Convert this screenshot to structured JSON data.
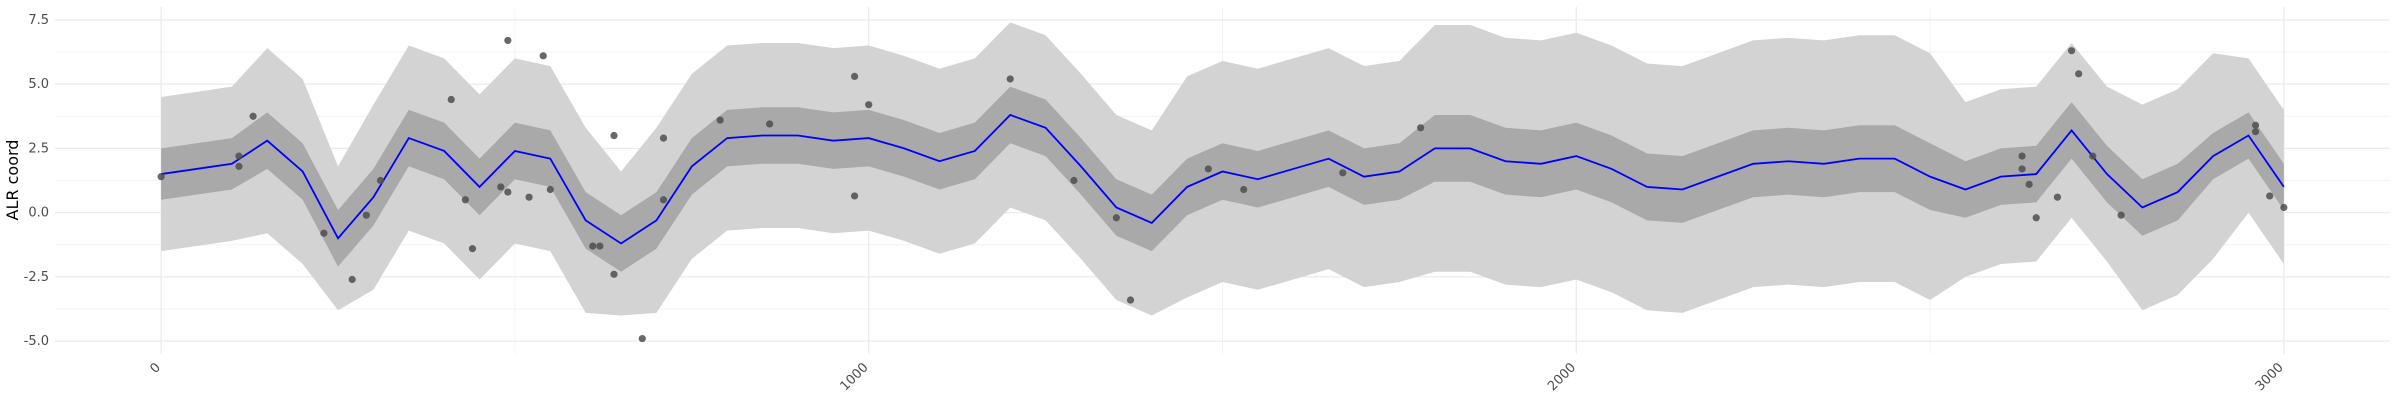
{
  "chart_data": {
    "type": "line",
    "y_label": "ALR coord",
    "xlim": [
      -150,
      3150
    ],
    "ylim": [
      -5.5,
      8
    ],
    "xticks": [
      0,
      1000,
      2000,
      3000
    ],
    "yticks": [
      {
        "value": -5,
        "label": "-5.0"
      },
      {
        "value": -2.5,
        "label": "-2.5"
      },
      {
        "value": 0,
        "label": "0.0"
      },
      {
        "value": 2.5,
        "label": "2.5"
      },
      {
        "value": 5,
        "label": "5.0"
      },
      {
        "value": 7.5,
        "label": "7.5"
      }
    ],
    "grid": true,
    "x": [
      0,
      50,
      100,
      150,
      200,
      250,
      300,
      350,
      400,
      450,
      500,
      550,
      600,
      650,
      700,
      750,
      800,
      850,
      900,
      950,
      1000,
      1050,
      1100,
      1150,
      1200,
      1250,
      1300,
      1350,
      1400,
      1450,
      1500,
      1550,
      1600,
      1650,
      1700,
      1750,
      1800,
      1850,
      1900,
      1950,
      2000,
      2050,
      2100,
      2150,
      2200,
      2250,
      2300,
      2350,
      2400,
      2450,
      2500,
      2550,
      2600,
      2650,
      2700,
      2750,
      2800,
      2850,
      2900,
      2950,
      3000
    ],
    "mean": {
      "color": "#0000ff",
      "values": [
        1.5,
        1.7,
        1.9,
        2.8,
        1.6,
        -1.0,
        0.6,
        2.9,
        2.4,
        1.0,
        2.4,
        2.1,
        -0.3,
        -1.2,
        -0.3,
        1.8,
        2.9,
        3.0,
        3.0,
        2.8,
        2.9,
        2.5,
        2.0,
        2.4,
        3.8,
        3.3,
        1.8,
        0.2,
        -0.4,
        1.0,
        1.6,
        1.3,
        1.7,
        2.1,
        1.4,
        1.6,
        2.5,
        2.5,
        2.0,
        1.9,
        2.2,
        1.7,
        1.0,
        0.9,
        1.4,
        1.9,
        2.0,
        1.9,
        2.1,
        2.1,
        1.4,
        0.9,
        1.4,
        1.5,
        3.2,
        1.5,
        0.2,
        0.8,
        2.2,
        3.0,
        1.0
      ]
    },
    "inner_band": {
      "color": "#a9a9a9",
      "lower": [
        0.5,
        0.7,
        0.9,
        1.7,
        0.5,
        -2.1,
        -0.5,
        1.8,
        1.3,
        -0.1,
        1.3,
        1.0,
        -1.4,
        -2.3,
        -1.4,
        0.7,
        1.8,
        1.9,
        1.9,
        1.7,
        1.8,
        1.4,
        0.9,
        1.3,
        2.7,
        2.2,
        0.7,
        -0.9,
        -1.5,
        -0.1,
        0.5,
        0.2,
        0.6,
        1.0,
        0.3,
        0.5,
        1.2,
        1.2,
        0.7,
        0.6,
        0.9,
        0.4,
        -0.3,
        -0.4,
        0.1,
        0.6,
        0.7,
        0.6,
        0.8,
        0.8,
        0.1,
        -0.2,
        0.3,
        0.4,
        2.1,
        0.4,
        -0.9,
        -0.3,
        1.3,
        2.1,
        0.1
      ],
      "upper": [
        2.5,
        2.7,
        2.9,
        3.9,
        2.7,
        0.1,
        1.7,
        4.0,
        3.5,
        2.1,
        3.5,
        3.2,
        0.8,
        -0.1,
        0.8,
        2.9,
        4.0,
        4.1,
        4.1,
        3.9,
        4.0,
        3.6,
        3.1,
        3.5,
        4.9,
        4.4,
        2.9,
        1.3,
        0.7,
        2.1,
        2.7,
        2.4,
        2.8,
        3.2,
        2.5,
        2.7,
        3.8,
        3.8,
        3.3,
        3.2,
        3.5,
        3.0,
        2.3,
        2.2,
        2.7,
        3.2,
        3.3,
        3.2,
        3.4,
        3.4,
        2.7,
        2.0,
        2.5,
        2.6,
        4.3,
        2.6,
        1.3,
        1.9,
        3.1,
        3.9,
        1.9
      ]
    },
    "outer_band": {
      "color": "#d3d3d3",
      "lower": [
        -1.5,
        -1.3,
        -1.1,
        -0.8,
        -2.0,
        -3.8,
        -3.0,
        -0.7,
        -1.2,
        -2.6,
        -1.2,
        -1.5,
        -3.9,
        -4.0,
        -3.9,
        -1.8,
        -0.7,
        -0.6,
        -0.6,
        -0.8,
        -0.7,
        -1.1,
        -1.6,
        -1.2,
        0.2,
        -0.3,
        -1.8,
        -3.4,
        -4.0,
        -3.3,
        -2.7,
        -3.0,
        -2.6,
        -2.2,
        -2.9,
        -2.7,
        -2.3,
        -2.3,
        -2.8,
        -2.9,
        -2.6,
        -3.1,
        -3.8,
        -3.9,
        -3.4,
        -2.9,
        -2.8,
        -2.9,
        -2.7,
        -2.7,
        -3.4,
        -2.5,
        -2.0,
        -1.9,
        -0.2,
        -1.9,
        -3.8,
        -3.2,
        -1.8,
        0.0,
        -2.0
      ],
      "upper": [
        4.5,
        4.7,
        4.9,
        6.4,
        5.2,
        1.8,
        4.2,
        6.5,
        6.0,
        4.6,
        6.0,
        5.7,
        3.3,
        1.6,
        3.3,
        5.4,
        6.5,
        6.6,
        6.6,
        6.4,
        6.5,
        6.1,
        5.6,
        6.0,
        7.4,
        6.9,
        5.4,
        3.8,
        3.2,
        5.3,
        5.9,
        5.6,
        6.0,
        6.4,
        5.7,
        5.9,
        7.3,
        7.3,
        6.8,
        6.7,
        7.0,
        6.5,
        5.8,
        5.7,
        6.2,
        6.7,
        6.8,
        6.7,
        6.9,
        6.9,
        6.2,
        4.3,
        4.8,
        4.9,
        6.6,
        4.9,
        4.2,
        4.8,
        6.2,
        6.0,
        4.0
      ]
    },
    "points": {
      "color": "#4d4d4d",
      "x": [
        0,
        110,
        110,
        130,
        230,
        270,
        290,
        310,
        410,
        430,
        440,
        480,
        490,
        490,
        520,
        540,
        550,
        610,
        620,
        640,
        640,
        680,
        710,
        710,
        790,
        860,
        980,
        980,
        1000,
        1200,
        1290,
        1350,
        1370,
        1480,
        1530,
        1670,
        1780,
        2630,
        2630,
        2640,
        2650,
        2680,
        2700,
        2710,
        2730,
        2770,
        2960,
        2960,
        2980,
        3000
      ],
      "y": [
        1.4,
        2.2,
        1.8,
        3.75,
        -0.8,
        -2.6,
        -0.1,
        1.25,
        4.4,
        0.5,
        -1.4,
        1.0,
        6.7,
        0.8,
        0.6,
        6.1,
        0.9,
        -1.3,
        -1.3,
        -2.4,
        3.0,
        -4.9,
        2.9,
        0.5,
        3.6,
        3.45,
        5.3,
        0.65,
        4.2,
        5.2,
        1.25,
        -0.2,
        -3.4,
        1.7,
        0.9,
        1.55,
        3.3,
        2.2,
        1.7,
        1.1,
        -0.2,
        0.6,
        6.3,
        5.4,
        2.2,
        -0.1,
        3.4,
        3.15,
        0.65,
        0.2
      ]
    }
  }
}
